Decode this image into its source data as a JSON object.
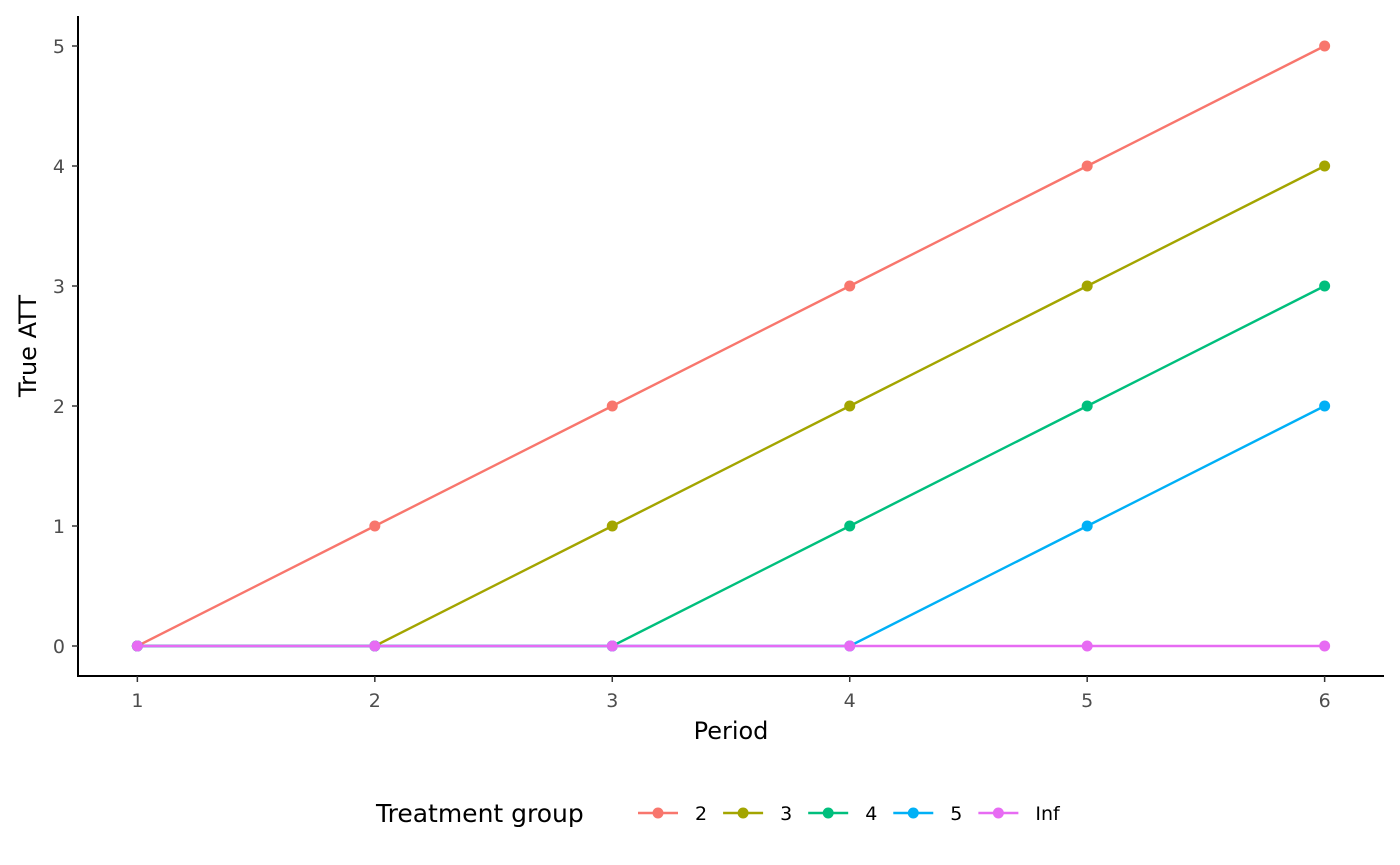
{
  "chart_data": {
    "type": "line",
    "title": "",
    "xlabel": "Period",
    "ylabel": "True ATT",
    "x": [
      1,
      2,
      3,
      4,
      5,
      6
    ],
    "xlim": [
      0.75,
      6.25
    ],
    "ylim": [
      -0.25,
      5.25
    ],
    "xticks": [
      1,
      2,
      3,
      4,
      5,
      6
    ],
    "yticks": [
      0,
      1,
      2,
      3,
      4,
      5
    ],
    "grid": false,
    "legend": {
      "title": "Treatment group",
      "position": "bottom"
    },
    "series": [
      {
        "name": "2",
        "color": "#F8766D",
        "values": [
          0,
          1,
          2,
          3,
          4,
          5
        ]
      },
      {
        "name": "3",
        "color": "#A3A500",
        "values": [
          0,
          0,
          1,
          2,
          3,
          4
        ]
      },
      {
        "name": "4",
        "color": "#00BF7D",
        "values": [
          0,
          0,
          0,
          1,
          2,
          3
        ]
      },
      {
        "name": "5",
        "color": "#00B0F6",
        "values": [
          0,
          0,
          0,
          0,
          1,
          2
        ]
      },
      {
        "name": "Inf",
        "color": "#E76BF3",
        "values": [
          0,
          0,
          0,
          0,
          0,
          0
        ]
      }
    ]
  }
}
